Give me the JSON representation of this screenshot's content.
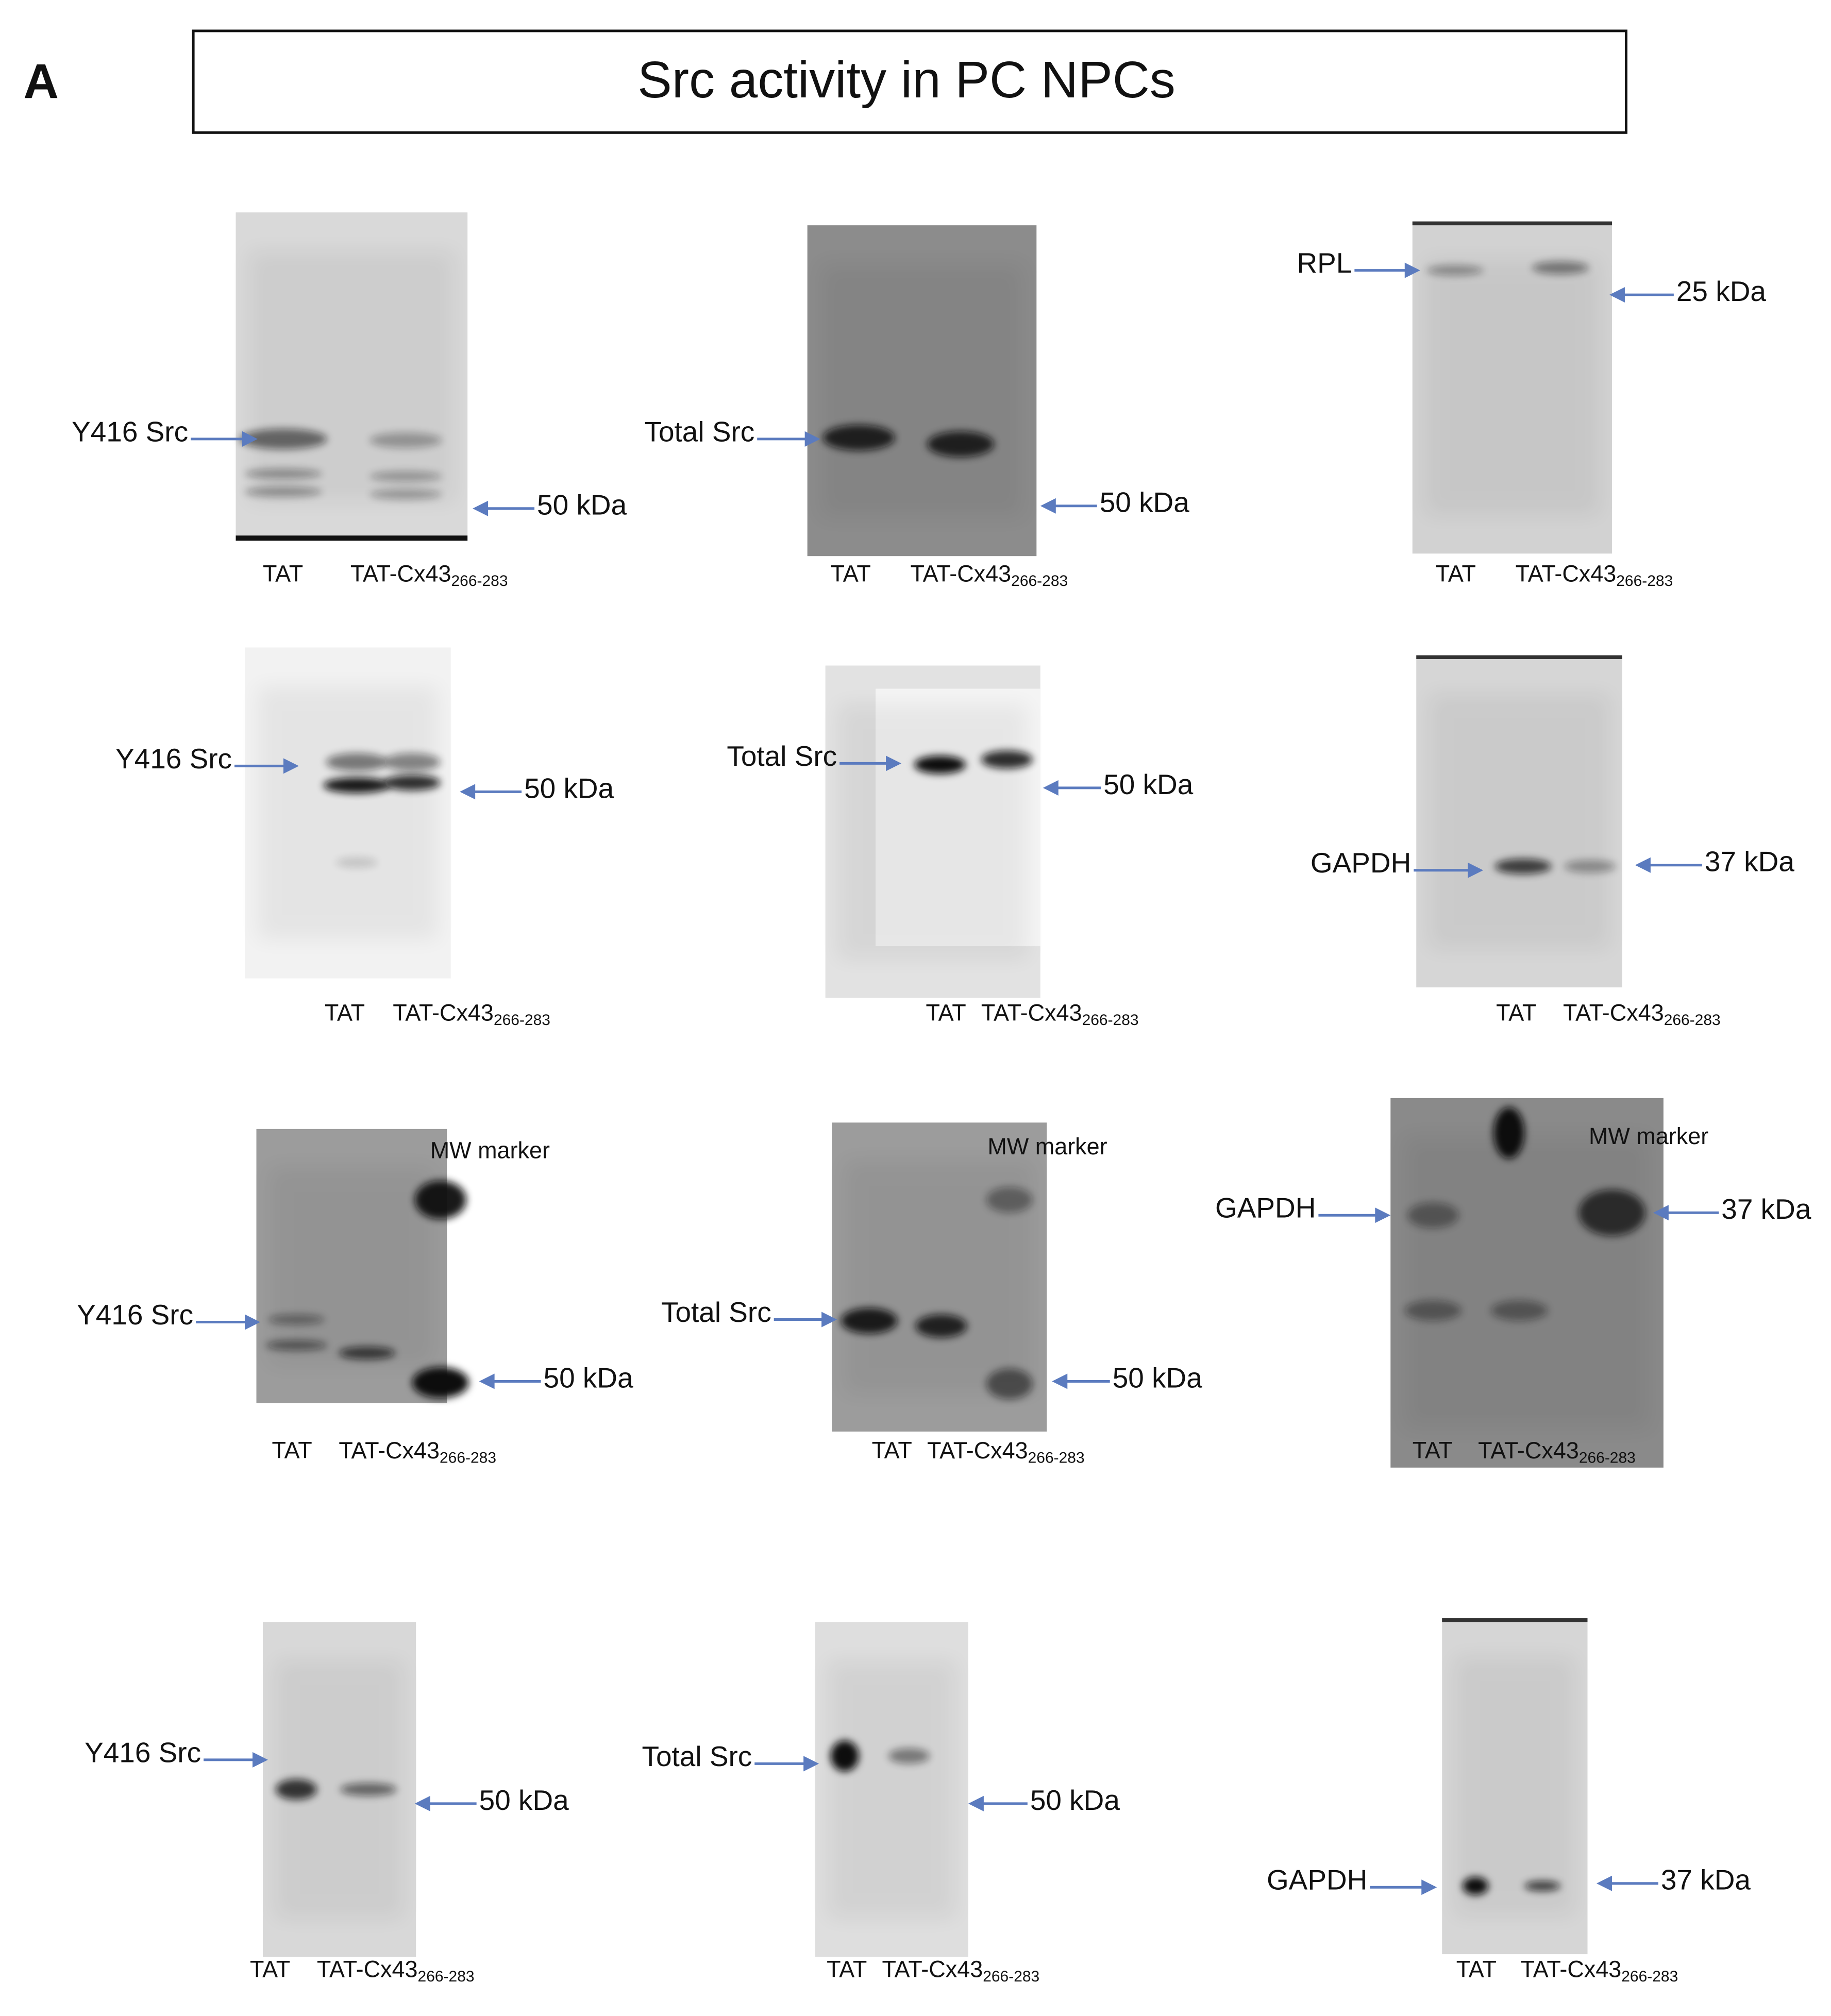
{
  "panel_label": "A",
  "title": "Src activity  in PC NPCs",
  "blots": [
    {
      "target": "Y416 Src",
      "size": "50 kDa",
      "lanes": [
        "TAT",
        "TAT-Cx43"
      ],
      "subscript": "266-283"
    },
    {
      "target": "Total Src",
      "size": "50 kDa",
      "lanes": [
        "TAT",
        "TAT-Cx43"
      ],
      "subscript": "266-283"
    },
    {
      "target": "RPL",
      "size": "25 kDa",
      "lanes": [
        "TAT",
        "TAT-Cx43"
      ],
      "subscript": "266-283"
    },
    {
      "target": "Y416 Src",
      "size": "50 kDa",
      "lanes": [
        "TAT",
        "TAT-Cx43"
      ],
      "subscript": "266-283"
    },
    {
      "target": "Total Src",
      "size": "50 kDa",
      "lanes": [
        "TAT",
        "TAT-Cx43"
      ],
      "subscript": "266-283"
    },
    {
      "target": "GAPDH",
      "size": "37 kDa",
      "lanes": [
        "TAT",
        "TAT-Cx43"
      ],
      "subscript": "266-283"
    },
    {
      "target": "Y416 Src",
      "size": "50 kDa",
      "lanes": [
        "TAT",
        "TAT-Cx43"
      ],
      "subscript": "266-283",
      "marker": "MW marker"
    },
    {
      "target": "Total Src",
      "size": "50 kDa",
      "lanes": [
        "TAT",
        "TAT-Cx43"
      ],
      "subscript": "266-283",
      "marker": "MW marker"
    },
    {
      "target": "GAPDH",
      "size": "37 kDa",
      "lanes": [
        "TAT",
        "TAT-Cx43"
      ],
      "subscript": "266-283",
      "marker": "MW marker"
    },
    {
      "target": "Y416 Src",
      "size": "50 kDa",
      "lanes": [
        "TAT",
        "TAT-Cx43"
      ],
      "subscript": "266-283"
    },
    {
      "target": "Total Src",
      "size": "50 kDa",
      "lanes": [
        "TAT",
        "TAT-Cx43"
      ],
      "subscript": "266-283"
    },
    {
      "target": "GAPDH",
      "size": "37 kDa",
      "lanes": [
        "TAT",
        "TAT-Cx43"
      ],
      "subscript": "266-283"
    }
  ]
}
